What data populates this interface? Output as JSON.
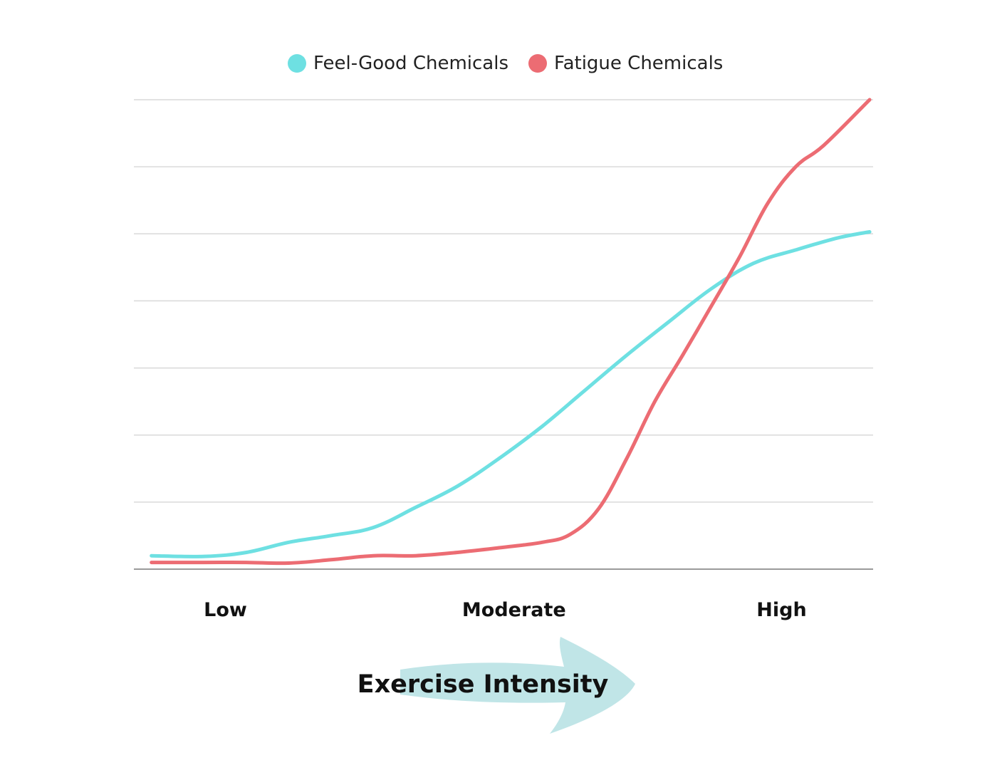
{
  "chart_data": {
    "type": "line",
    "title": "",
    "xlabel": "Exercise Intensity",
    "ylabel": "",
    "x_tick_labels": [
      {
        "label": "Low",
        "x": 1.3
      },
      {
        "label": "Moderate",
        "x": 5.4
      },
      {
        "label": "High",
        "x": 9.2
      }
    ],
    "xlim": [
      0,
      10.5
    ],
    "ylim": [
      0,
      7
    ],
    "gridlines": [
      1,
      2,
      3,
      4,
      5,
      6,
      7
    ],
    "grid": true,
    "legend_position": "top-center",
    "series": [
      {
        "name": "Feel-Good Chemicals",
        "color": "#6ee0e2",
        "x": [
          0.25,
          1.0,
          1.6,
          2.2,
          2.8,
          3.4,
          4.0,
          4.6,
          5.2,
          5.8,
          6.4,
          7.0,
          7.6,
          8.2,
          8.8,
          9.4,
          10.0,
          10.45
        ],
        "y": [
          0.2,
          0.19,
          0.25,
          0.4,
          0.5,
          0.62,
          0.92,
          1.24,
          1.66,
          2.13,
          2.66,
          3.19,
          3.69,
          4.18,
          4.56,
          4.76,
          4.94,
          5.03
        ]
      },
      {
        "name": "Fatigue Chemicals",
        "color": "#ec6c73",
        "x": [
          0.25,
          1.0,
          1.6,
          2.2,
          2.8,
          3.4,
          4.0,
          4.6,
          5.2,
          5.8,
          6.2,
          6.6,
          7.0,
          7.4,
          7.8,
          8.2,
          8.6,
          9.0,
          9.4,
          9.8,
          10.45
        ],
        "y": [
          0.1,
          0.1,
          0.1,
          0.09,
          0.14,
          0.2,
          0.2,
          0.25,
          0.32,
          0.4,
          0.52,
          0.9,
          1.65,
          2.5,
          3.2,
          3.92,
          4.65,
          5.45,
          6.0,
          6.32,
          7.0
        ]
      }
    ]
  }
}
